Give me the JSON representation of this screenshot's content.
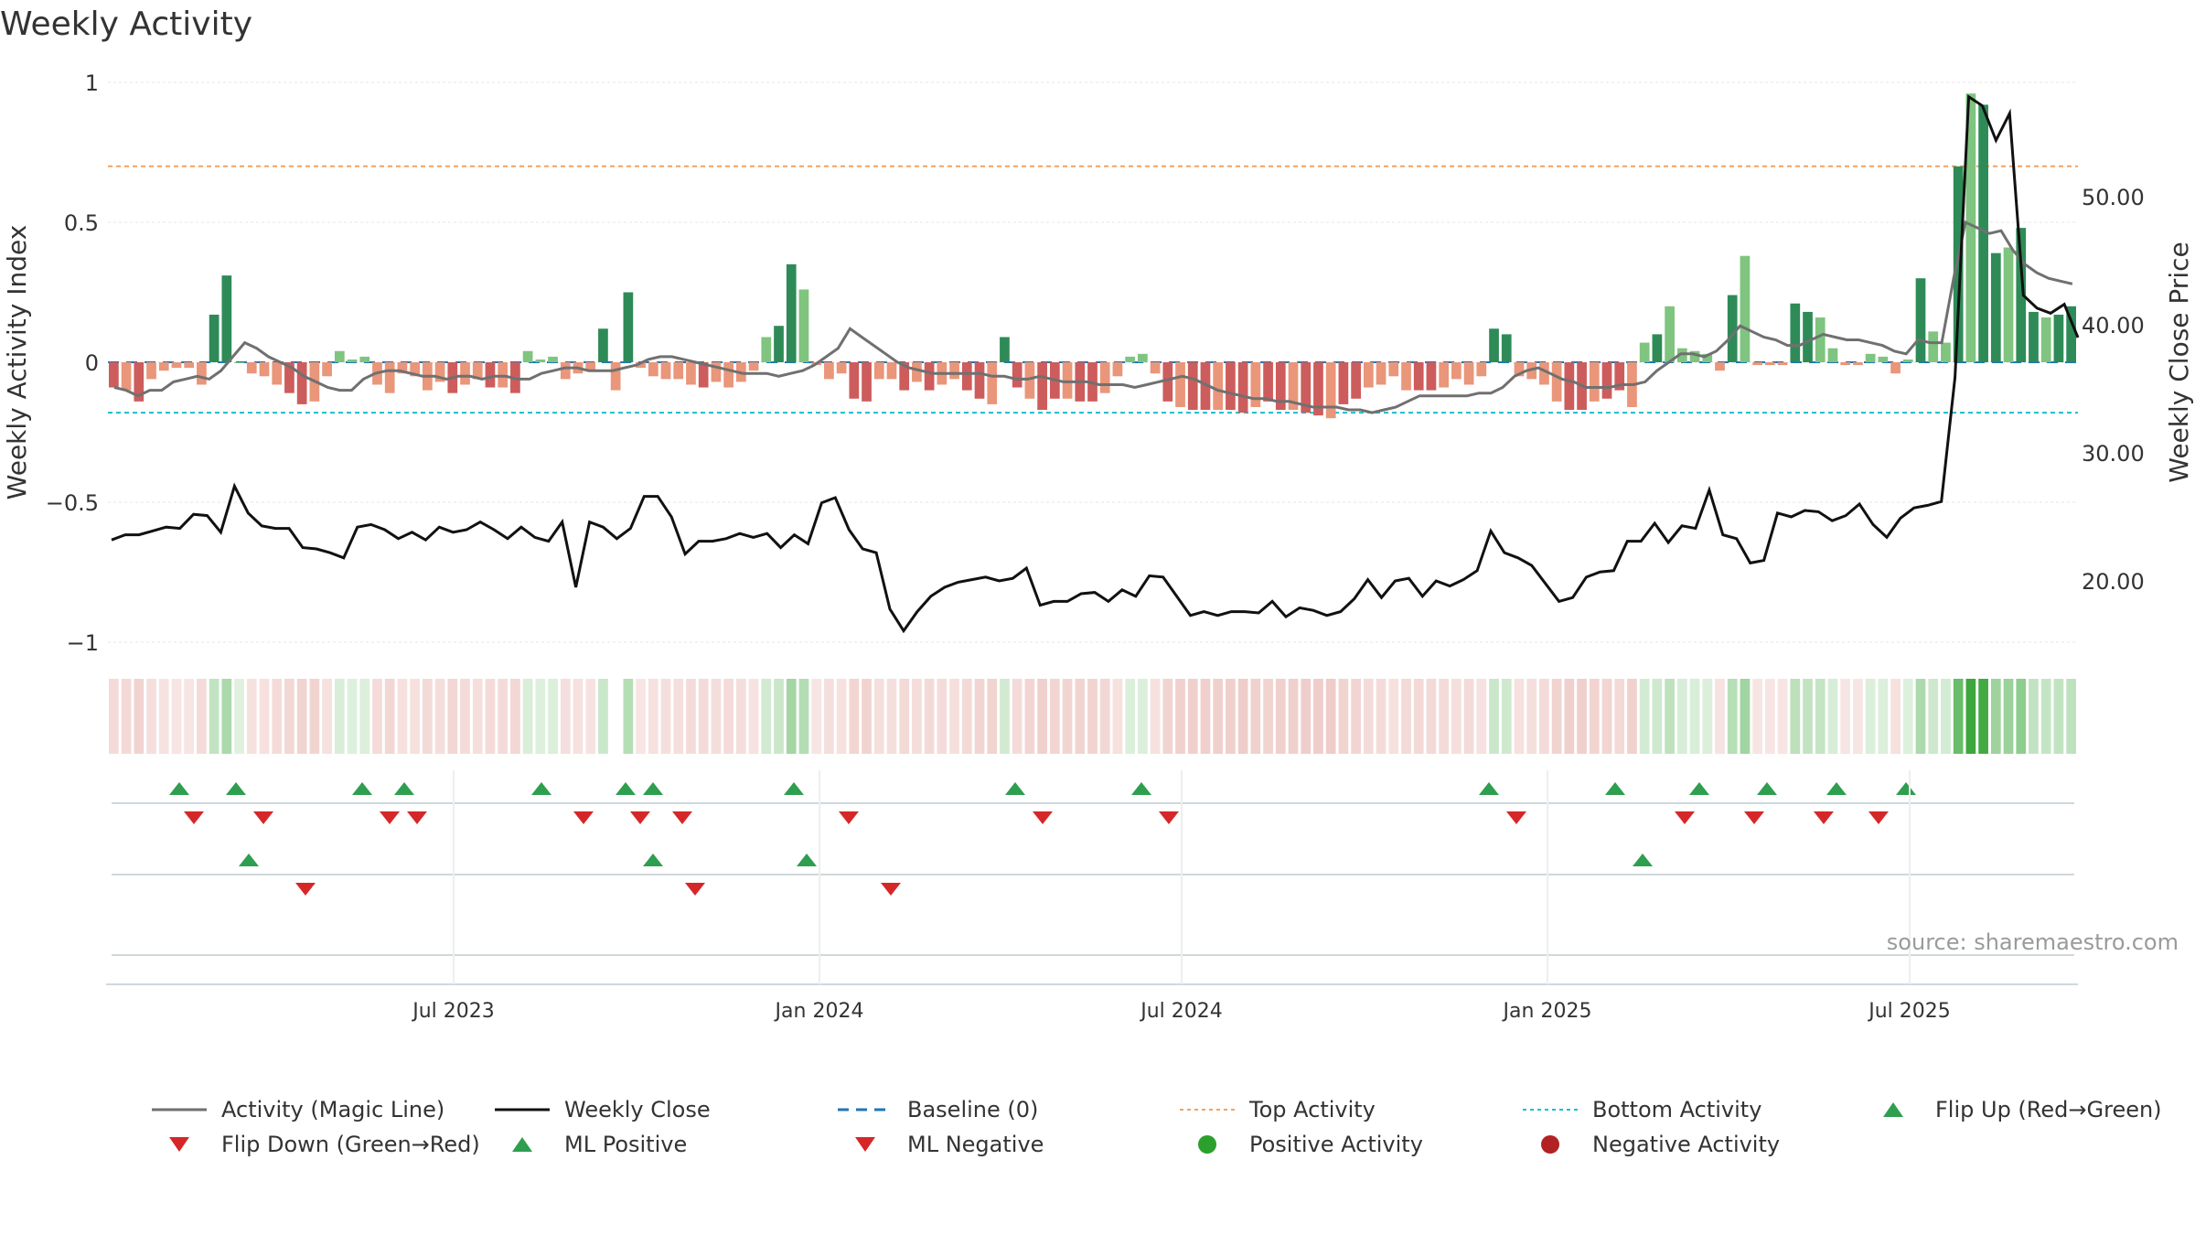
{
  "chart_data": {
    "type": "bar",
    "title": "Weekly Activity",
    "ylabel": "Weekly Activity Index",
    "y2label": "Weekly Close Price",
    "ylim": [
      -1,
      1
    ],
    "y2lim": [
      14.0,
      60.0
    ],
    "yticks": [
      "1",
      "0.5",
      "0",
      "−0.5",
      "−1"
    ],
    "y2ticks": [
      "50.00",
      "40.00",
      "30.00",
      "20.00"
    ],
    "xticks": [
      "Jul 2023",
      "Jan 2024",
      "Jul 2024",
      "Jan 2025",
      "Jul 2025"
    ],
    "top_activity": 0.7,
    "bottom_activity": -0.18,
    "baseline": 0,
    "series": [
      {
        "name": "Activity (Magic Line)",
        "color": "#707070",
        "values": [
          -0.09,
          -0.1,
          -0.12,
          -0.1,
          -0.1,
          -0.07,
          -0.06,
          -0.05,
          -0.06,
          -0.03,
          0.02,
          0.07,
          0.05,
          0.02,
          0.0,
          -0.02,
          -0.05,
          -0.07,
          -0.09,
          -0.1,
          -0.1,
          -0.06,
          -0.04,
          -0.03,
          -0.03,
          -0.04,
          -0.05,
          -0.05,
          -0.06,
          -0.05,
          -0.05,
          -0.06,
          -0.05,
          -0.05,
          -0.06,
          -0.06,
          -0.04,
          -0.03,
          -0.02,
          -0.02,
          -0.03,
          -0.03,
          -0.03,
          -0.02,
          -0.01,
          0.01,
          0.02,
          0.02,
          0.01,
          0.0,
          -0.01,
          -0.02,
          -0.03,
          -0.04,
          -0.04,
          -0.04,
          -0.05,
          -0.04,
          -0.03,
          -0.01,
          0.02,
          0.05,
          0.12,
          0.09,
          0.06,
          0.03,
          0.0,
          -0.02,
          -0.03,
          -0.04,
          -0.04,
          -0.04,
          -0.04,
          -0.04,
          -0.05,
          -0.05,
          -0.06,
          -0.06,
          -0.05,
          -0.06,
          -0.07,
          -0.07,
          -0.07,
          -0.08,
          -0.08,
          -0.08,
          -0.09,
          -0.08,
          -0.07,
          -0.06,
          -0.05,
          -0.06,
          -0.08,
          -0.1,
          -0.11,
          -0.12,
          -0.13,
          -0.13,
          -0.14,
          -0.14,
          -0.15,
          -0.16,
          -0.16,
          -0.16,
          -0.17,
          -0.17,
          -0.18,
          -0.17,
          -0.16,
          -0.14,
          -0.12,
          -0.12,
          -0.12,
          -0.12,
          -0.12,
          -0.11,
          -0.11,
          -0.09,
          -0.05,
          -0.03,
          -0.02,
          -0.04,
          -0.06,
          -0.07,
          -0.09,
          -0.09,
          -0.09,
          -0.08,
          -0.08,
          -0.07,
          -0.03,
          0.0,
          0.03,
          0.03,
          0.02,
          0.04,
          0.08,
          0.13,
          0.11,
          0.09,
          0.08,
          0.06,
          0.06,
          0.08,
          0.1,
          0.09,
          0.08,
          0.08,
          0.07,
          0.06,
          0.04,
          0.03,
          0.08,
          0.07,
          0.07,
          0.3,
          0.5,
          0.48,
          0.46,
          0.47,
          0.4,
          0.35,
          0.32,
          0.3,
          0.29,
          0.28
        ]
      },
      {
        "name": "Weekly Close",
        "color": "#111111",
        "values": [
          23.2,
          23.6,
          23.6,
          23.9,
          24.2,
          24.1,
          25.2,
          25.1,
          23.8,
          27.4,
          25.3,
          24.3,
          24.1,
          24.1,
          22.6,
          22.5,
          22.2,
          21.8,
          24.2,
          24.4,
          24.0,
          23.3,
          23.8,
          23.2,
          24.2,
          23.8,
          24.0,
          24.6,
          24.0,
          23.3,
          24.2,
          23.4,
          23.1,
          24.6,
          19.5,
          24.6,
          24.2,
          23.3,
          24.1,
          26.6,
          26.6,
          25.0,
          22.1,
          23.1,
          23.1,
          23.3,
          23.7,
          23.4,
          23.7,
          22.6,
          23.6,
          22.9,
          26.1,
          26.5,
          24.0,
          22.5,
          22.2,
          17.8,
          16.1,
          17.6,
          18.8,
          19.5,
          19.9,
          20.1,
          20.3,
          20.0,
          20.2,
          21.0,
          18.1,
          18.4,
          18.4,
          19.0,
          19.1,
          18.4,
          19.3,
          18.8,
          20.4,
          20.3,
          18.8,
          17.3,
          17.6,
          17.3,
          17.6,
          17.6,
          17.5,
          18.4,
          17.2,
          17.9,
          17.7,
          17.3,
          17.6,
          18.6,
          20.1,
          18.7,
          20.0,
          20.2,
          18.8,
          20.0,
          19.6,
          20.1,
          20.8,
          23.9,
          22.2,
          21.8,
          21.2,
          19.8,
          18.4,
          18.7,
          20.3,
          20.7,
          20.8,
          23.1,
          23.1,
          24.5,
          23.0,
          24.3,
          24.1,
          27.1,
          23.6,
          23.3,
          21.4,
          21.6,
          25.3,
          25.0,
          25.5,
          25.4,
          24.7,
          25.1,
          26.0,
          24.4,
          23.4,
          24.9,
          25.7,
          25.9,
          26.2,
          35.9,
          57.8,
          57.1,
          54.4,
          56.5,
          42.3,
          41.3,
          40.9,
          41.6,
          39.0
        ]
      },
      {
        "name": "Activity Bars",
        "values": [
          -0.09,
          -0.1,
          -0.14,
          -0.06,
          -0.03,
          -0.02,
          -0.02,
          -0.08,
          0.17,
          0.31,
          0.0,
          -0.04,
          -0.05,
          -0.08,
          -0.11,
          -0.15,
          -0.14,
          -0.05,
          0.04,
          0.01,
          0.02,
          -0.08,
          -0.11,
          -0.04,
          -0.05,
          -0.1,
          -0.07,
          -0.11,
          -0.08,
          -0.06,
          -0.09,
          -0.09,
          -0.11,
          0.04,
          0.01,
          0.02,
          -0.06,
          -0.04,
          -0.03,
          0.12,
          -0.1,
          0.25,
          -0.02,
          -0.05,
          -0.06,
          -0.06,
          -0.08,
          -0.09,
          -0.07,
          -0.09,
          -0.07,
          -0.03,
          0.09,
          0.13,
          0.35,
          0.26,
          -0.01,
          -0.06,
          -0.04,
          -0.13,
          -0.14,
          -0.06,
          -0.06,
          -0.1,
          -0.07,
          -0.1,
          -0.08,
          -0.06,
          -0.1,
          -0.13,
          -0.15,
          0.09,
          -0.09,
          -0.13,
          -0.17,
          -0.13,
          -0.13,
          -0.14,
          -0.14,
          -0.11,
          -0.05,
          0.02,
          0.03,
          -0.04,
          -0.14,
          -0.16,
          -0.17,
          -0.17,
          -0.17,
          -0.17,
          -0.18,
          -0.16,
          -0.14,
          -0.17,
          -0.17,
          -0.18,
          -0.19,
          -0.2,
          -0.15,
          -0.13,
          -0.09,
          -0.08,
          -0.05,
          -0.1,
          -0.1,
          -0.1,
          -0.09,
          -0.06,
          -0.08,
          -0.05,
          0.12,
          0.1,
          -0.05,
          -0.06,
          -0.08,
          -0.14,
          -0.17,
          -0.17,
          -0.14,
          -0.13,
          -0.1,
          -0.16,
          0.07,
          0.1,
          0.2,
          0.05,
          0.04,
          0.03,
          -0.03,
          0.24,
          0.38,
          -0.01,
          -0.01,
          -0.01,
          0.21,
          0.18,
          0.16,
          0.05,
          -0.01,
          -0.01,
          0.03,
          0.02,
          -0.04,
          0.01,
          0.3,
          0.11,
          0.07,
          0.7,
          0.96,
          0.92,
          0.39,
          0.41,
          0.48,
          0.18,
          0.16,
          0.17,
          0.2
        ]
      }
    ],
    "flip_up": [
      "2023-03",
      "2023-04",
      "2023-06",
      "2023-06b",
      "2023-09",
      "2023-10",
      "2023-11",
      "2023-12",
      "2024-04",
      "2024-06",
      "2024-12",
      "2025-02",
      "2025-03",
      "2025-04",
      "2025-06",
      "2025-07"
    ],
    "annotation": "source: sharemaestro.com"
  },
  "legend": {
    "items": [
      {
        "label": "Activity (Magic Line)",
        "sym": "line",
        "color": "#707070"
      },
      {
        "label": "Weekly Close",
        "sym": "line",
        "color": "#111111"
      },
      {
        "label": "Baseline (0)",
        "sym": "dash",
        "color": "#1f77b4"
      },
      {
        "label": "Top Activity",
        "sym": "dot",
        "color": "#f4a261"
      },
      {
        "label": "Bottom Activity",
        "sym": "dot",
        "color": "#17becf"
      },
      {
        "label": "Flip Up (Red→Green)",
        "sym": "up",
        "color": "#2e9e4f"
      },
      {
        "label": "Flip Down (Green→Red)",
        "sym": "down",
        "color": "#d62728"
      },
      {
        "label": "ML Positive",
        "sym": "up",
        "color": "#2e9e4f"
      },
      {
        "label": "ML Negative",
        "sym": "down",
        "color": "#d62728"
      },
      {
        "label": "Positive Activity",
        "sym": "circle",
        "color": "#2ca02c"
      },
      {
        "label": "Negative Activity",
        "sym": "circle",
        "color": "#b22222"
      }
    ]
  },
  "colors": {
    "strong_green": "#2e8b57",
    "light_green": "#7fc47f",
    "strong_red": "#cd5c5c",
    "light_red": "#e9967a",
    "grid": "#e6e6e6"
  }
}
